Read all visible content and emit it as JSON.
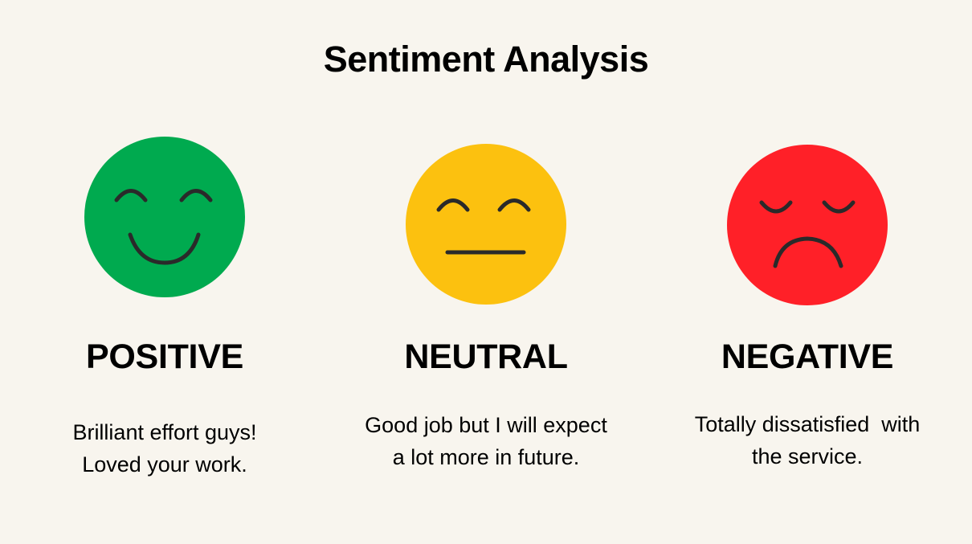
{
  "title": "Sentiment Analysis",
  "colors": {
    "background": "#f8f5ee",
    "positive": "#00aa4f",
    "neutral": "#fcc10f",
    "negative": "#ff2028",
    "features": "#2a2a2a"
  },
  "sentiments": [
    {
      "icon": "smiling-face-icon",
      "label": "POSITIVE",
      "lines": [
        "Brilliant effort guys!",
        "Loved your work."
      ]
    },
    {
      "icon": "neutral-face-icon",
      "label": "NEUTRAL",
      "lines": [
        "Good job but I will expect",
        "a lot more in future."
      ]
    },
    {
      "icon": "sad-face-icon",
      "label": "NEGATIVE",
      "lines": [
        "Totally dissatisfied  with",
        "the service."
      ]
    }
  ]
}
